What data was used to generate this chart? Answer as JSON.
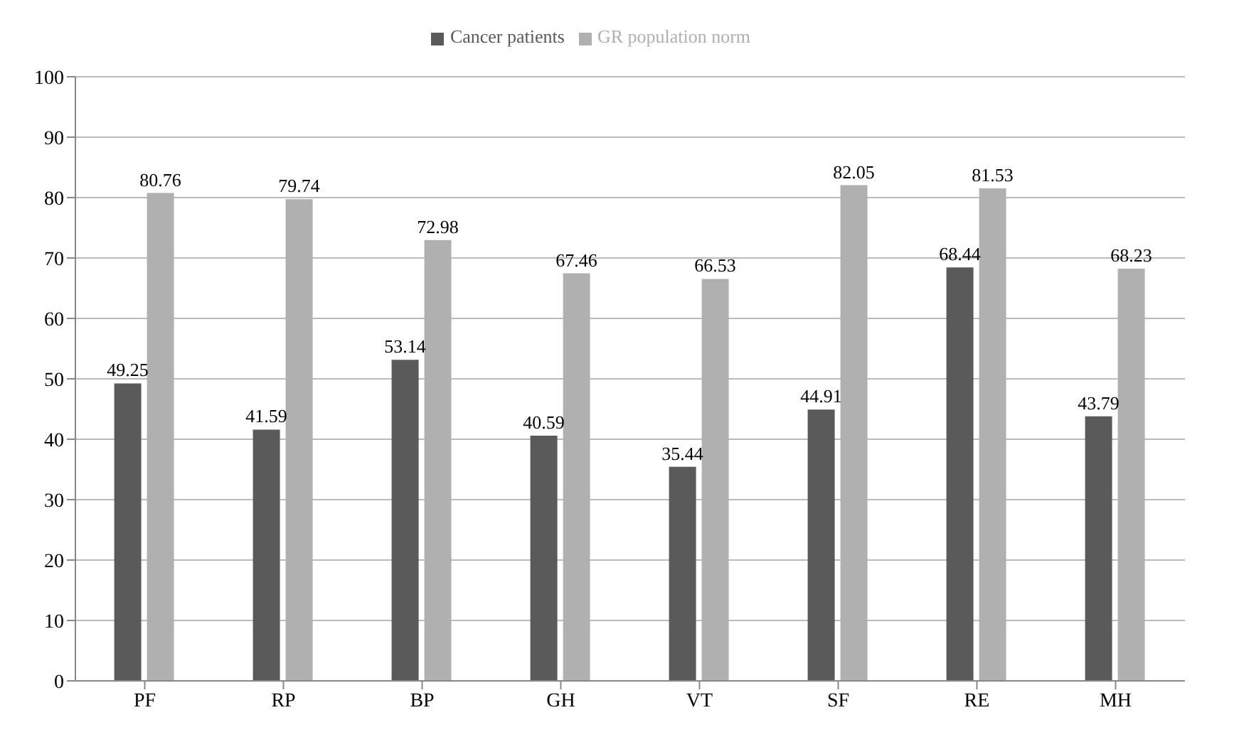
{
  "chart_data": {
    "type": "bar",
    "categories": [
      "PF",
      "RP",
      "BP",
      "GH",
      "VT",
      "SF",
      "RE",
      "MH"
    ],
    "series": [
      {
        "name": "Cancer patients",
        "color": "#5a5a5a",
        "values": [
          49.25,
          41.59,
          53.14,
          40.59,
          35.44,
          44.91,
          68.44,
          43.79
        ]
      },
      {
        "name": "GR population norm",
        "color": "#b0b0b0",
        "values": [
          80.76,
          79.74,
          72.98,
          67.46,
          66.53,
          82.05,
          81.53,
          68.23
        ]
      }
    ],
    "ylim": [
      0,
      100
    ],
    "yticks": [
      0,
      10,
      20,
      30,
      40,
      50,
      60,
      70,
      80,
      90,
      100
    ],
    "grid": "y",
    "legend": "top",
    "data_labels": true
  }
}
